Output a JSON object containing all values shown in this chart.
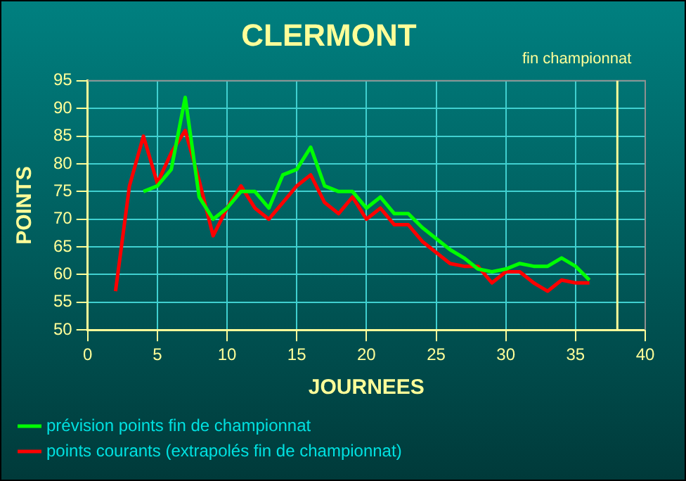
{
  "chart_data": {
    "type": "line",
    "title": "CLERMONT",
    "xlabel": "JOURNEES",
    "ylabel": "POINTS",
    "x": [
      2,
      3,
      4,
      5,
      6,
      7,
      8,
      9,
      10,
      11,
      12,
      13,
      14,
      15,
      16,
      17,
      18,
      19,
      20,
      21,
      22,
      23,
      24,
      25,
      26,
      27,
      28,
      29,
      30,
      31,
      32,
      33,
      34,
      35,
      36
    ],
    "series": [
      {
        "name": "prévision points fin de championnat",
        "color": "#00ff00",
        "values": [
          null,
          null,
          75,
          76,
          79,
          92,
          74,
          70,
          72,
          75,
          75,
          72,
          78,
          79,
          83,
          76,
          75,
          75,
          72,
          74,
          71,
          71,
          68.5,
          66.5,
          64.5,
          63,
          61,
          60.5,
          61,
          62,
          61.5,
          61.5,
          63,
          61.5,
          59
        ]
      },
      {
        "name": "points courants (extrapolés fin de championnat)",
        "color": "#ff0000",
        "values": [
          57,
          76,
          85,
          76.5,
          82,
          86,
          77,
          67,
          72,
          76,
          72,
          70,
          73,
          76,
          78,
          73,
          71,
          74,
          70,
          72,
          69,
          69,
          66,
          64,
          62,
          61.5,
          61.5,
          58.5,
          60.5,
          60.5,
          58.5,
          57,
          59,
          58.5,
          58.5
        ]
      }
    ],
    "xlim": [
      0,
      40
    ],
    "xticks": [
      0,
      5,
      10,
      15,
      20,
      25,
      30,
      35,
      40
    ],
    "ylim": [
      50,
      95
    ],
    "yticks": [
      50,
      55,
      60,
      65,
      70,
      75,
      80,
      85,
      90,
      95
    ],
    "ref_lines": [
      {
        "axis": "x",
        "value": 38,
        "label": "fin championnat",
        "color": "#ffff99"
      }
    ],
    "grid": true,
    "legend": "bottom left",
    "marker": "none",
    "line_style": "solid"
  }
}
